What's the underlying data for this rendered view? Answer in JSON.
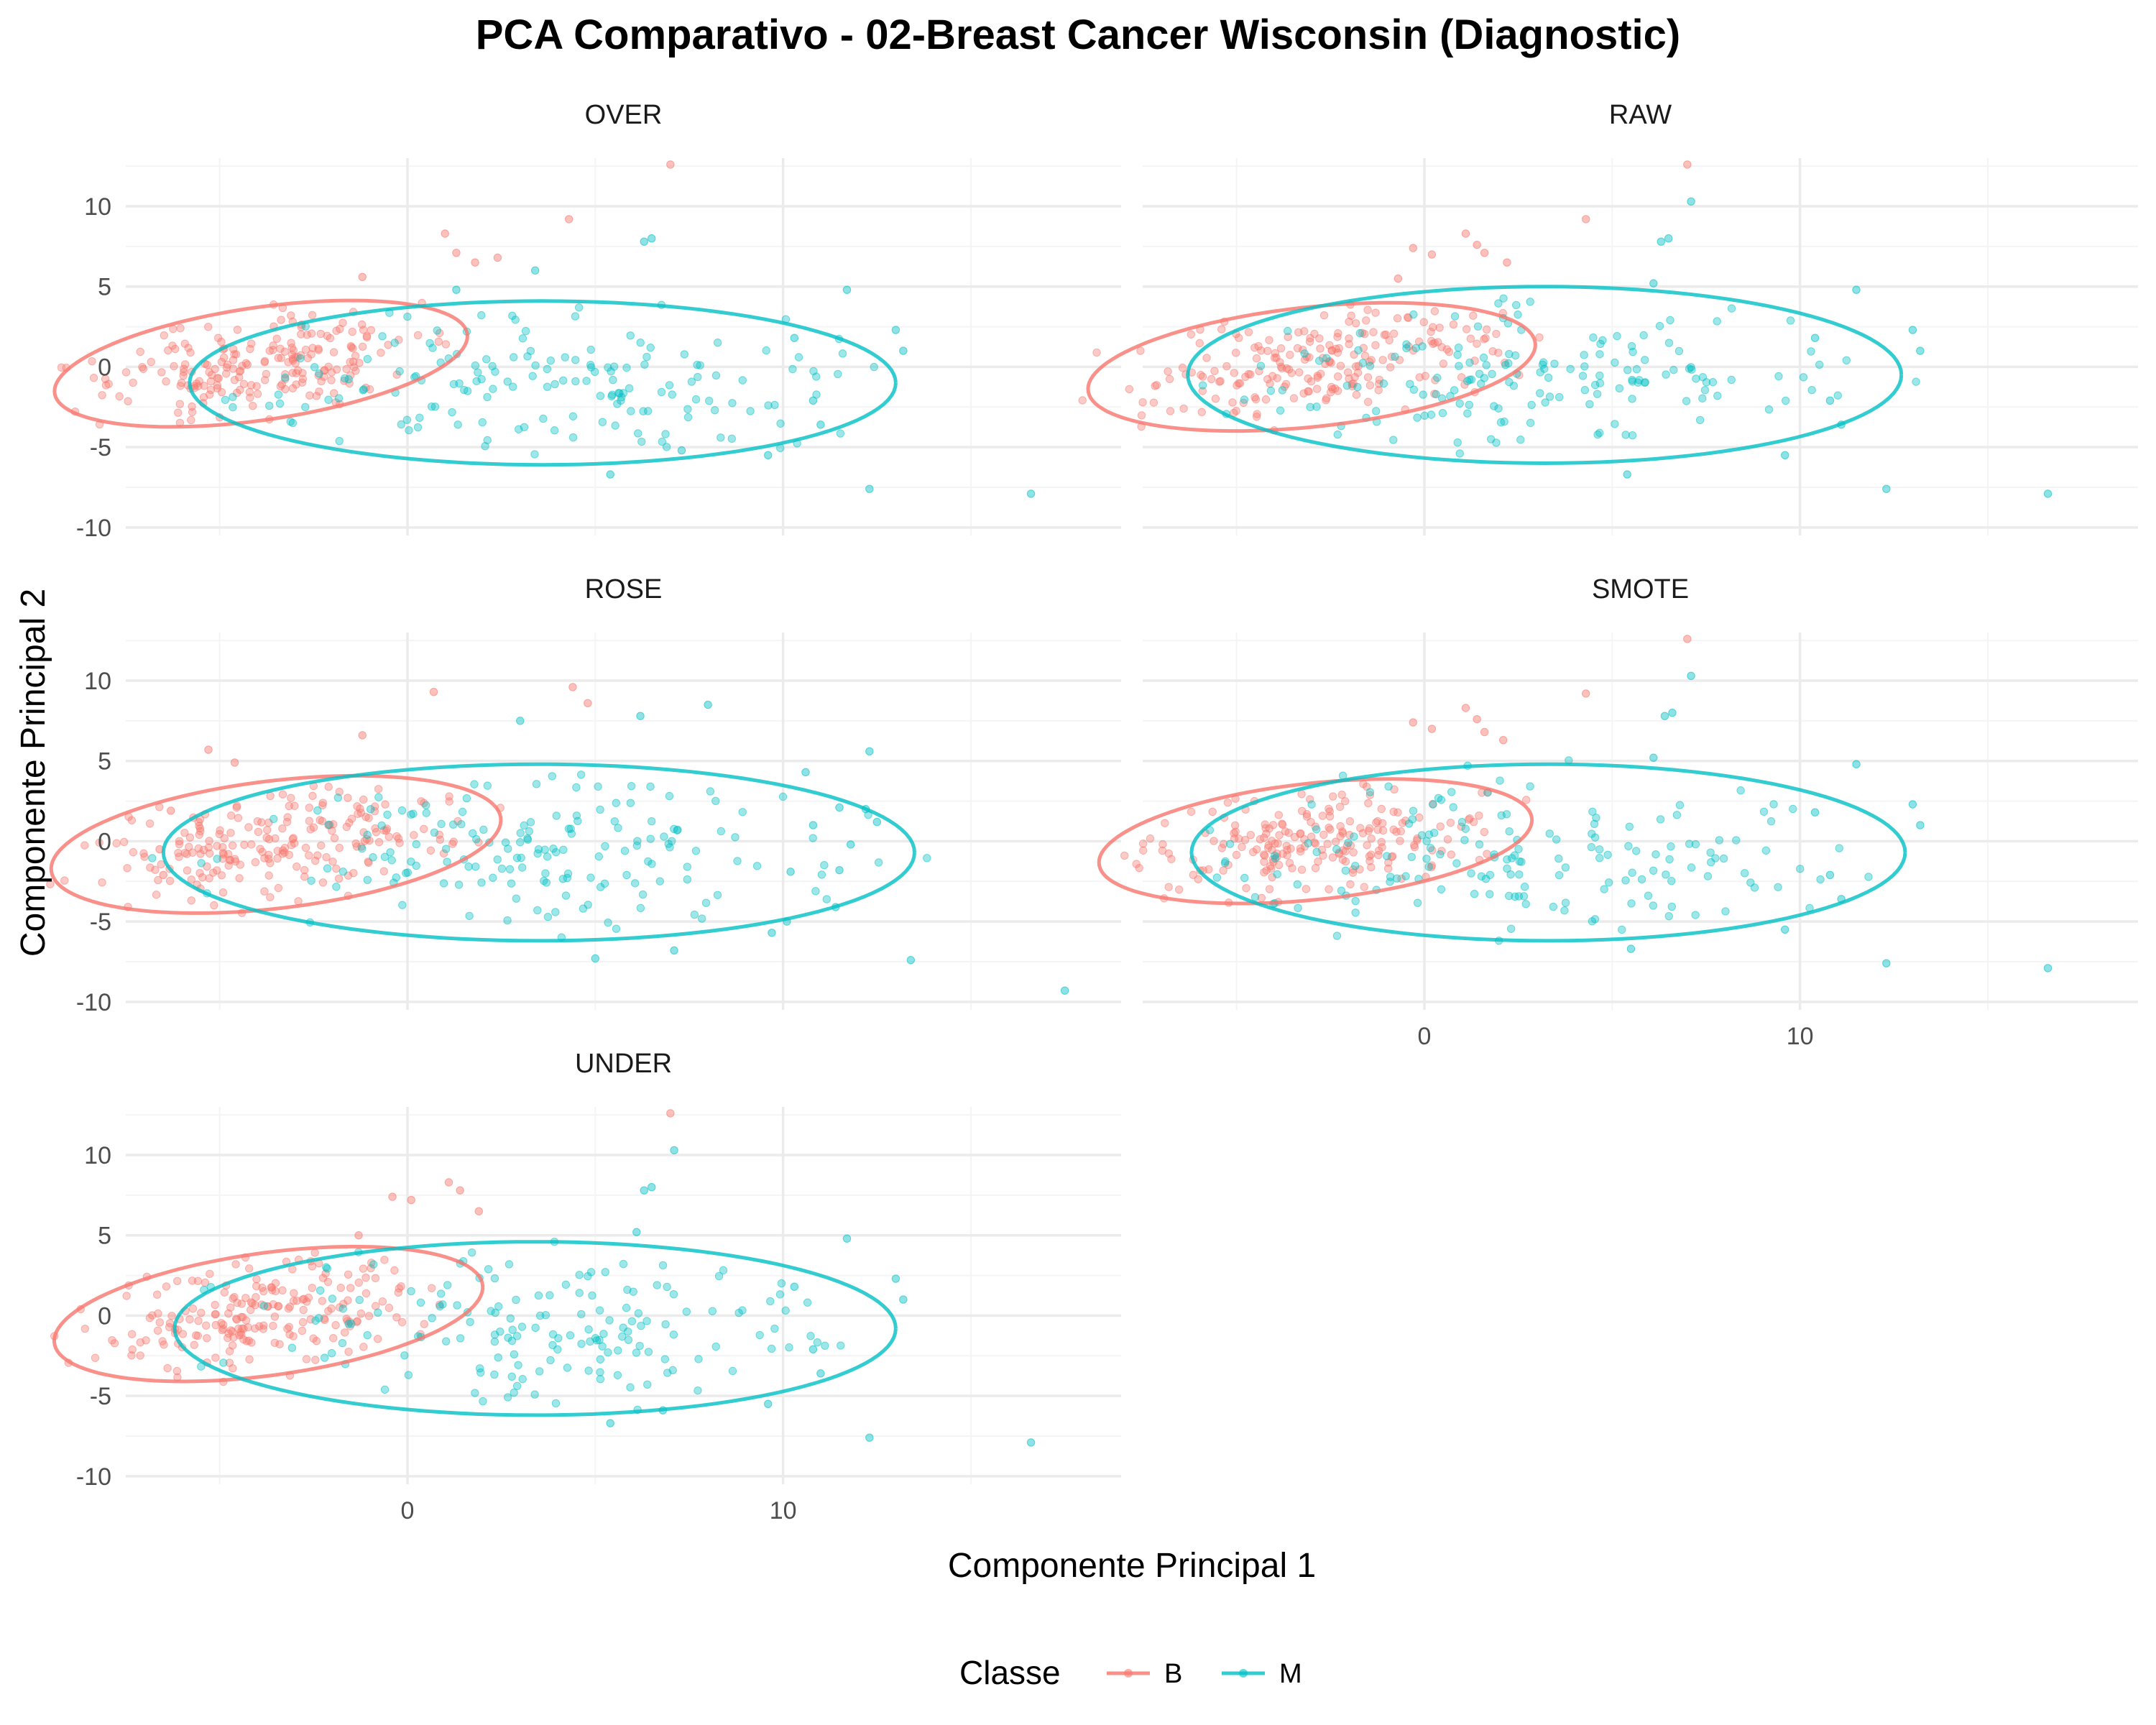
{
  "chart_data": {
    "type": "scatter",
    "title": "PCA Comparativo - 02-Breast Cancer Wisconsin (Diagnostic)",
    "xlabel": "Componente Principal 1",
    "ylabel": "Componente Principal 2",
    "xlim": [
      -7.5,
      19
    ],
    "ylim": [
      -10.5,
      13
    ],
    "x_ticks": [
      0,
      10
    ],
    "y_ticks": [
      -10,
      -5,
      0,
      5,
      10
    ],
    "grid": true,
    "legend": {
      "title": "Classe",
      "position": "bottom",
      "entries": [
        {
          "label": "B",
          "color": "#F8766D"
        },
        {
          "label": "M",
          "color": "#00BFC4"
        }
      ]
    },
    "panels": [
      {
        "name": "OVER",
        "ellipses": [
          {
            "class": "B",
            "cx": -3.9,
            "cy": 0.2,
            "rx": 5.9,
            "ry": 3.3,
            "angle_deg": 26
          },
          {
            "class": "M",
            "cx": 3.6,
            "cy": -1.0,
            "rx": 9.4,
            "ry": 5.1,
            "angle_deg": 0
          }
        ],
        "outliers": {
          "B": [
            [
              7,
              12.6
            ],
            [
              4.3,
              9.2
            ],
            [
              1,
              8.3
            ],
            [
              1.3,
              7.1
            ],
            [
              2.4,
              6.8
            ],
            [
              -1.2,
              5.6
            ],
            [
              1.8,
              6.5
            ]
          ],
          "M": [
            [
              6.5,
              8
            ],
            [
              6.3,
              7.8
            ],
            [
              11.7,
              4.8
            ],
            [
              13,
              2.3
            ],
            [
              13.2,
              1
            ],
            [
              10.3,
              1.8
            ],
            [
              10.8,
              -2.1
            ],
            [
              11,
              -3.6
            ],
            [
              9.6,
              -5.5
            ],
            [
              12.3,
              -7.6
            ],
            [
              16.6,
              -7.9
            ],
            [
              5.4,
              -6.7
            ],
            [
              7.3,
              -5.2
            ],
            [
              3.4,
              6
            ],
            [
              1.3,
              4.8
            ]
          ]
        }
      },
      {
        "name": "RAW",
        "ellipses": [
          {
            "class": "B",
            "cx": -3.0,
            "cy": 0.0,
            "rx": 6.2,
            "ry": 3.6,
            "angle_deg": 20
          },
          {
            "class": "M",
            "cx": 3.2,
            "cy": -0.5,
            "rx": 9.5,
            "ry": 5.5,
            "angle_deg": 0
          }
        ],
        "outliers": {
          "B": [
            [
              7,
              12.6
            ],
            [
              4.3,
              9.2
            ],
            [
              1.1,
              8.3
            ],
            [
              1.4,
              7.6
            ],
            [
              1.6,
              7.1
            ],
            [
              2.2,
              6.5
            ],
            [
              -0.3,
              7.4
            ],
            [
              0.2,
              7
            ],
            [
              -0.7,
              5.5
            ]
          ],
          "M": [
            [
              7.1,
              10.3
            ],
            [
              6.5,
              8
            ],
            [
              6.3,
              7.8
            ],
            [
              6.1,
              5.2
            ],
            [
              11.5,
              4.8
            ],
            [
              13,
              2.3
            ],
            [
              13.2,
              1
            ],
            [
              10.4,
              1.8
            ],
            [
              10.8,
              -2.1
            ],
            [
              11.1,
              -3.6
            ],
            [
              9.6,
              -5.5
            ],
            [
              12.3,
              -7.6
            ],
            [
              16.6,
              -7.9
            ],
            [
              5.4,
              -6.7
            ]
          ]
        }
      },
      {
        "name": "ROSE",
        "ellipses": [
          {
            "class": "B",
            "cx": -3.5,
            "cy": -0.2,
            "rx": 6.3,
            "ry": 3.8,
            "angle_deg": 23
          },
          {
            "class": "M",
            "cx": 3.5,
            "cy": -0.7,
            "rx": 10.0,
            "ry": 5.5,
            "angle_deg": 0
          }
        ],
        "outliers": {
          "B": [
            [
              4.4,
              9.6
            ],
            [
              0.7,
              9.3
            ],
            [
              4.8,
              8.6
            ],
            [
              -1.2,
              6.6
            ],
            [
              -5.3,
              5.7
            ],
            [
              -4.6,
              4.9
            ],
            [
              -6.3,
              1.9
            ],
            [
              -6.6,
              -0.5
            ],
            [
              -6.5,
              -2.1
            ]
          ],
          "M": [
            [
              8,
              8.5
            ],
            [
              6.2,
              7.8
            ],
            [
              3,
              7.5
            ],
            [
              12.3,
              5.6
            ],
            [
              10.6,
              4.3
            ],
            [
              11.5,
              2.1
            ],
            [
              12.2,
              2
            ],
            [
              12.5,
              1.2
            ],
            [
              10.8,
              1
            ],
            [
              11.8,
              -0.2
            ],
            [
              10.2,
              -1.9
            ],
            [
              11.5,
              -1.8
            ],
            [
              10.1,
              -5
            ],
            [
              11.4,
              -4.1
            ],
            [
              9.7,
              -5.7
            ],
            [
              13.4,
              -7.4
            ],
            [
              17.5,
              -9.3
            ],
            [
              7.1,
              -6.8
            ],
            [
              5,
              -7.3
            ]
          ]
        }
      },
      {
        "name": "SMOTE",
        "ellipses": [
          {
            "class": "B",
            "cx": -2.9,
            "cy": 0.0,
            "rx": 6.0,
            "ry": 3.5,
            "angle_deg": 20
          },
          {
            "class": "M",
            "cx": 3.3,
            "cy": -0.7,
            "rx": 9.5,
            "ry": 5.5,
            "angle_deg": 0
          }
        ],
        "outliers": {
          "B": [
            [
              7,
              12.6
            ],
            [
              4.3,
              9.2
            ],
            [
              1.1,
              8.3
            ],
            [
              1.4,
              7.6
            ],
            [
              1.6,
              6.8
            ],
            [
              2.1,
              6.3
            ],
            [
              -0.3,
              7.4
            ],
            [
              0.2,
              7
            ]
          ],
          "M": [
            [
              7.1,
              10.3
            ],
            [
              6.6,
              8
            ],
            [
              6.4,
              7.8
            ],
            [
              6.1,
              5.2
            ],
            [
              11.5,
              4.8
            ],
            [
              13,
              2.3
            ],
            [
              13.2,
              1
            ],
            [
              10.4,
              1.8
            ],
            [
              10.8,
              -2.1
            ],
            [
              11.1,
              -3.6
            ],
            [
              9.6,
              -5.5
            ],
            [
              12.3,
              -7.6
            ],
            [
              16.6,
              -7.9
            ],
            [
              5.5,
              -6.7
            ]
          ]
        }
      },
      {
        "name": "UNDER",
        "ellipses": [
          {
            "class": "B",
            "cx": -3.7,
            "cy": 0.1,
            "rx": 6.1,
            "ry": 3.6,
            "angle_deg": 26
          },
          {
            "class": "M",
            "cx": 3.4,
            "cy": -0.8,
            "rx": 9.6,
            "ry": 5.4,
            "angle_deg": 0
          }
        ],
        "outliers": {
          "B": [
            [
              7,
              12.6
            ],
            [
              1.1,
              8.3
            ],
            [
              1.4,
              7.8
            ],
            [
              -0.4,
              7.4
            ],
            [
              0.1,
              7.2
            ],
            [
              1.9,
              6.5
            ],
            [
              -1.3,
              5
            ]
          ],
          "M": [
            [
              7.1,
              10.3
            ],
            [
              6.5,
              8
            ],
            [
              6.3,
              7.8
            ],
            [
              6.1,
              5.2
            ],
            [
              11.7,
              4.8
            ],
            [
              13,
              2.3
            ],
            [
              13.2,
              1
            ],
            [
              10.3,
              1.8
            ],
            [
              10.8,
              -2.1
            ],
            [
              11,
              -3.6
            ],
            [
              9.6,
              -5.5
            ],
            [
              12.3,
              -7.6
            ],
            [
              16.6,
              -7.9
            ],
            [
              5.4,
              -6.7
            ],
            [
              6.8,
              -5.9
            ]
          ]
        }
      }
    ]
  }
}
